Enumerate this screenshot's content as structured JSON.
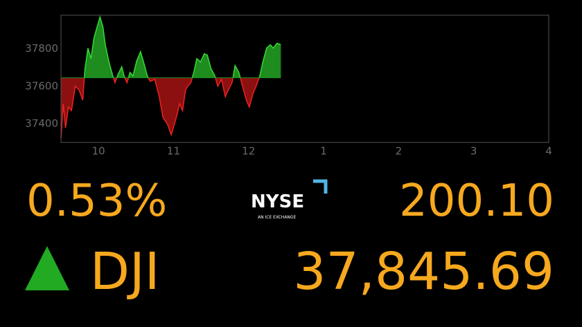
{
  "chart_data": {
    "type": "area",
    "x": [
      9.5,
      9.53,
      9.56,
      9.6,
      9.64,
      9.69,
      9.74,
      9.79,
      9.82,
      9.86,
      9.9,
      9.94,
      9.98,
      10.02,
      10.06,
      10.09,
      10.14,
      10.19,
      10.22,
      10.26,
      10.31,
      10.34,
      10.38,
      10.42,
      10.46,
      10.51,
      10.56,
      10.6,
      10.65,
      10.69,
      10.75,
      10.81,
      10.86,
      10.92,
      10.97,
      11.01,
      11.05,
      11.08,
      11.12,
      11.16,
      11.19,
      11.23,
      11.27,
      11.31,
      11.36,
      11.41,
      11.45,
      11.5,
      11.55,
      11.59,
      11.64,
      11.69,
      11.73,
      11.78,
      11.82,
      11.87,
      11.92,
      11.97,
      12.01,
      12.06,
      12.1,
      12.15,
      12.19,
      12.24,
      12.29,
      12.33,
      12.38,
      12.43
    ],
    "values": [
      37322,
      37507,
      37378,
      37489,
      37470,
      37600,
      37581,
      37526,
      37693,
      37804,
      37748,
      37859,
      37915,
      37970,
      37915,
      37822,
      37730,
      37656,
      37619,
      37663,
      37704,
      37656,
      37619,
      37674,
      37656,
      37737,
      37785,
      37730,
      37656,
      37626,
      37637,
      37544,
      37433,
      37396,
      37341,
      37396,
      37452,
      37507,
      37470,
      37581,
      37600,
      37619,
      37674,
      37748,
      37730,
      37774,
      37767,
      37693,
      37656,
      37600,
      37637,
      37544,
      37581,
      37619,
      37711,
      37674,
      37600,
      37526,
      37489,
      37563,
      37600,
      37656,
      37730,
      37804,
      37822,
      37804,
      37830,
      37822
    ],
    "baseline": 37645.59,
    "up_color": "#1e8c1e",
    "down_color": "#8c1010",
    "up_line_color": "#33dd33",
    "down_line_color": "#ee2222",
    "xlim": [
      9.5,
      16
    ],
    "xticks": [
      10,
      11,
      12,
      {
        "value": 13,
        "label": "1"
      },
      {
        "value": 14,
        "label": "2"
      },
      {
        "value": 15,
        "label": "3"
      },
      {
        "value": 16,
        "label": "4"
      }
    ],
    "ylim": [
      37300,
      37980
    ],
    "yticks": [
      37400,
      37600,
      37800
    ]
  },
  "ticker": {
    "percent_change": "0.53%",
    "symbol": "DJI",
    "point_change": "200.10",
    "price": "37,845.69",
    "exchange": "NYSE",
    "exchange_tagline": "AN ICE EXCHANGE"
  }
}
